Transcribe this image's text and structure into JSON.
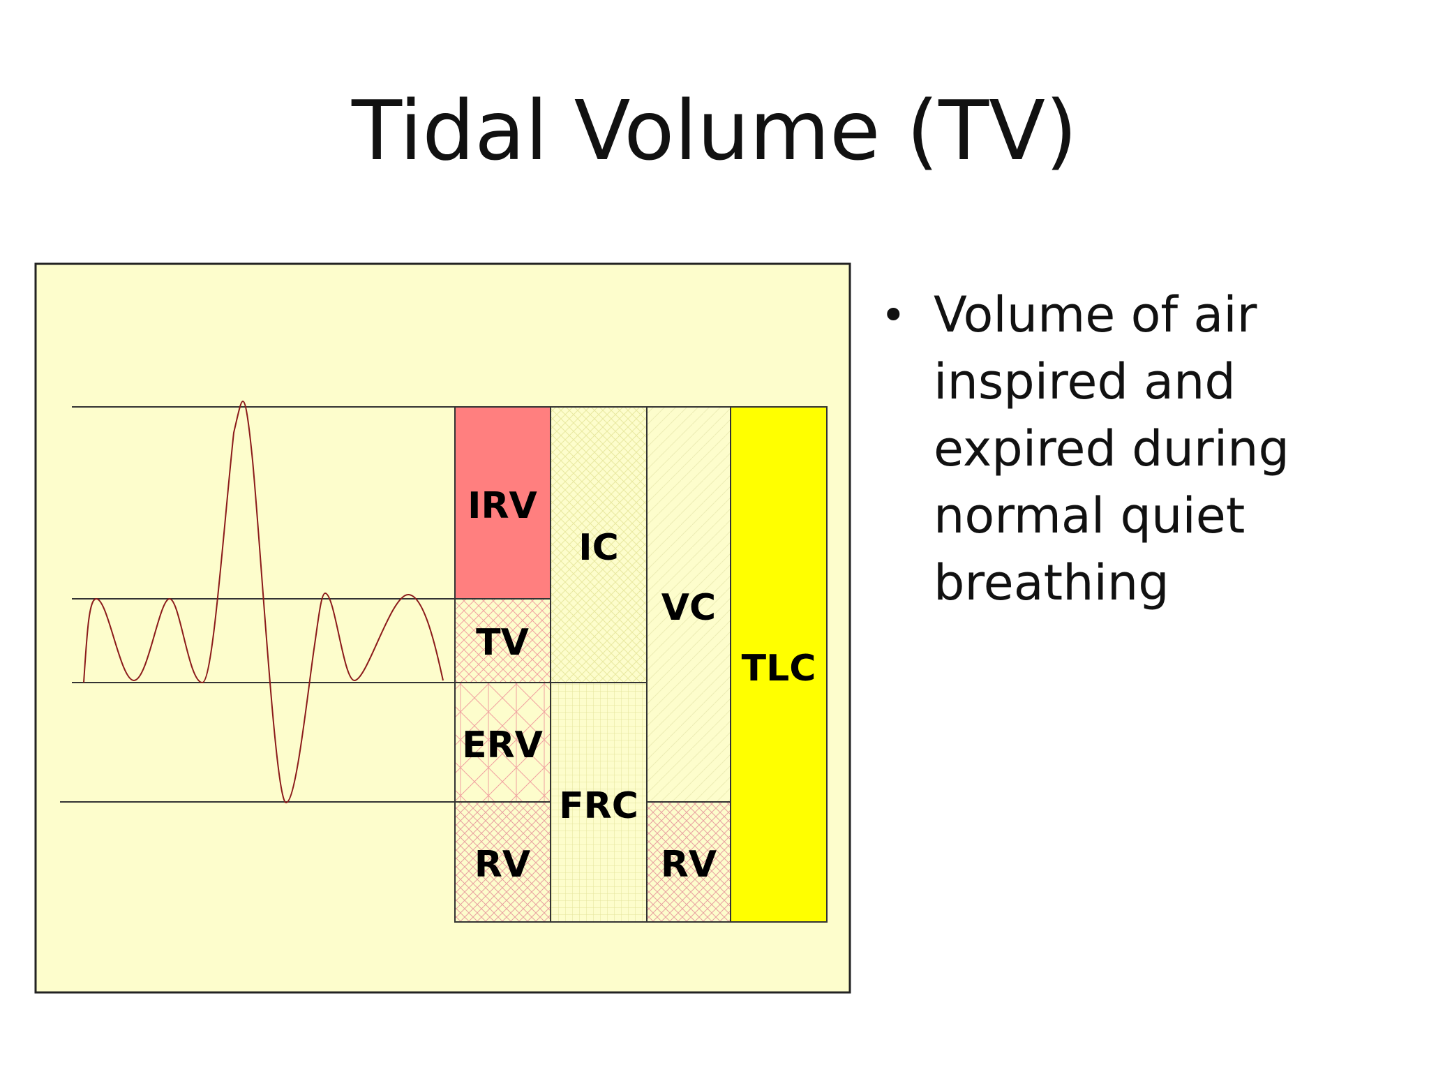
{
  "slide": {
    "title": "Tidal Volume (TV)",
    "bullets": [
      "Volume of air inspired and expired during normal quiet breathing"
    ]
  },
  "diagram": {
    "labels": {
      "irv": "IRV",
      "tv": "TV",
      "erv": "ERV",
      "rv_left": "RV",
      "ic": "IC",
      "frc": "FRC",
      "vc": "VC",
      "rv_right": "RV",
      "tlc": "TLC"
    },
    "colors": {
      "panel_background": "#fdfdcc",
      "irv": "#ff7f7f",
      "tlc": "#ffff00",
      "spirogram_line": "#8b1a1a"
    }
  }
}
